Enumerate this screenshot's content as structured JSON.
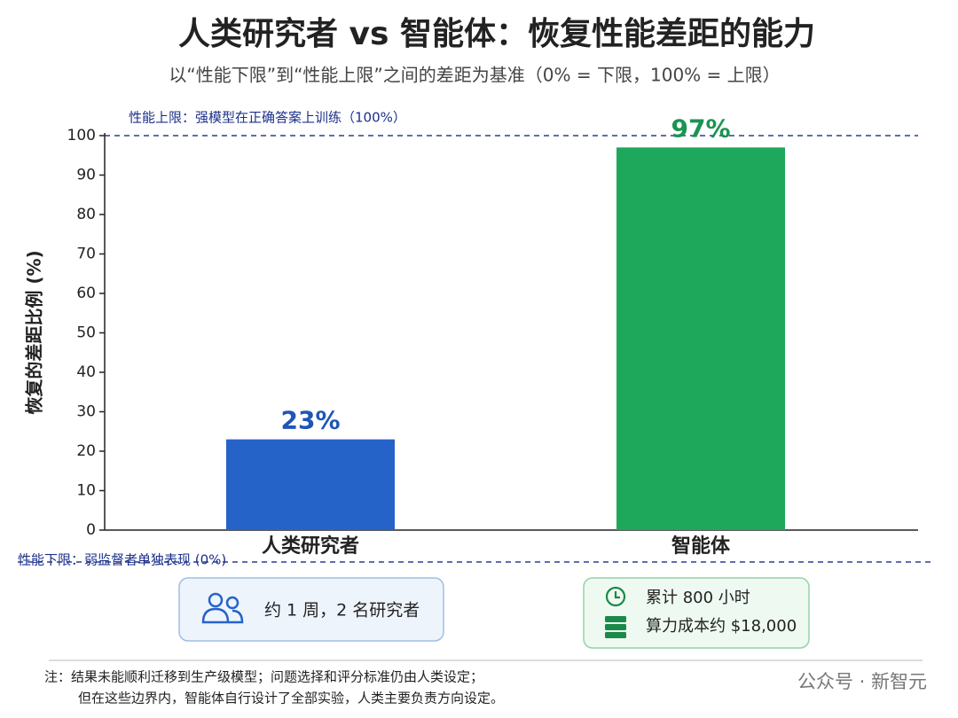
{
  "chart_data": {
    "type": "bar",
    "title": "人类研究者 vs 智能体：恢复性能差距的能力",
    "subtitle": "以“性能下限”到“性能上限”之间的差距为基准（0% = 下限，100% = 上限）",
    "ylabel": "恢复的差距比例 (%)",
    "categories": [
      "人类研究者",
      "智能体"
    ],
    "values": [
      23,
      97
    ],
    "value_labels": [
      "23%",
      "97%"
    ],
    "colors": [
      "#2563c9",
      "#1ea85c"
    ],
    "label_colors": [
      "#1f55b8",
      "#1a9452"
    ],
    "ylim": [
      0,
      100
    ],
    "yticks": [
      0,
      10,
      20,
      30,
      40,
      50,
      60,
      70,
      80,
      90,
      100
    ],
    "upper_note": "性能上限：强模型在正确答案上训练（100%）",
    "lower_note": "性能下限：弱监督者单独表现 (0%)"
  },
  "info_boxes": [
    {
      "lines": [
        "约 1 周，2 名研究者"
      ]
    },
    {
      "lines": [
        "累计 800 小时",
        "算力成本约 $18,000"
      ]
    }
  ],
  "footnote": [
    "注：结果未能顺利迁移到生产级模型；问题选择和评分标准仍由人类设定；",
    "但在这些边界内，智能体自行设计了全部实验，人类主要负责方向设定。"
  ],
  "watermark": "公众号 · 新智元"
}
